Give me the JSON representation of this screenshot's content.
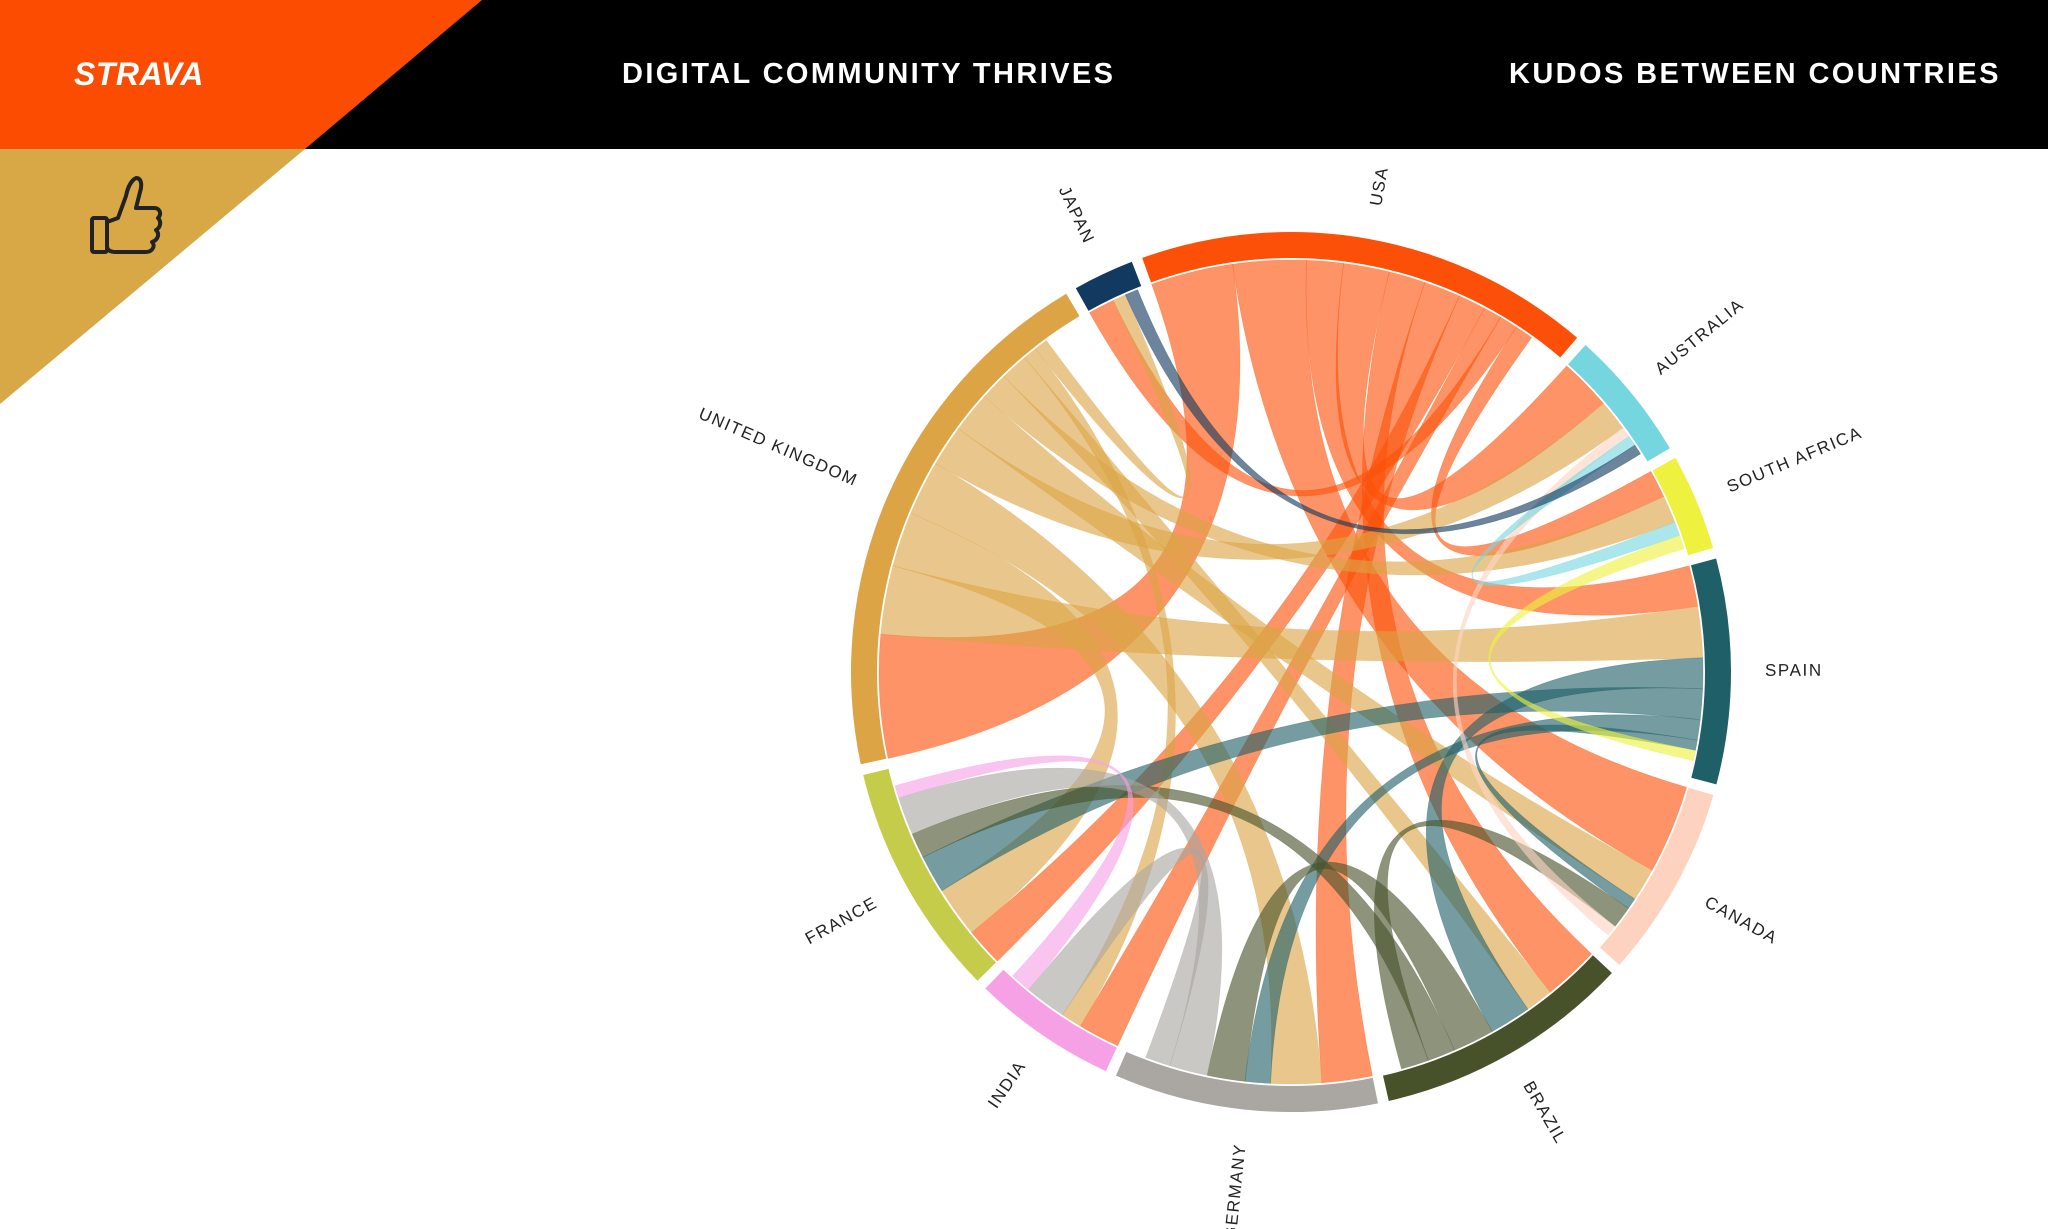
{
  "header": {
    "logo": "STRAVA",
    "title": "DIGITAL COMMUNITY THRIVES",
    "subtitle": "KUDOS BETWEEN COUNTRIES"
  },
  "icons": {
    "badge_icon": "thumbs-up-icon"
  },
  "colors": {
    "brand_orange": "#fc4c02",
    "badge_gold": "#d9a846",
    "header_black": "#000000"
  },
  "chart_data": {
    "type": "chord",
    "title": "",
    "groups": [
      {
        "name": "USA",
        "share": 0.142,
        "color": "#fc5008"
      },
      {
        "name": "AUSTRALIA",
        "share": 0.041,
        "color": "#76d6e0"
      },
      {
        "name": "SOUTH AFRICA",
        "share": 0.03,
        "color": "#eef23e"
      },
      {
        "name": "SPAIN",
        "share": 0.07,
        "color": "#1f5f68"
      },
      {
        "name": "CANADA",
        "share": 0.06,
        "color": "#fdd3c0"
      },
      {
        "name": "BRAZIL",
        "share": 0.08,
        "color": "#47522a"
      },
      {
        "name": "GERMANY",
        "share": 0.082,
        "color": "#aaa7a2"
      },
      {
        "name": "INDIA",
        "share": 0.045,
        "color": "#f6a1e6"
      },
      {
        "name": "FRANCE",
        "share": 0.073,
        "color": "#c5cc4a"
      },
      {
        "name": "UNITED KINGDOM",
        "share": 0.168,
        "color": "#dca445"
      },
      {
        "name": "JAPAN",
        "share": 0.019,
        "color": "#123a60"
      }
    ],
    "flows": [
      [
        "USA",
        "UNITED KINGDOM",
        9
      ],
      [
        "USA",
        "CANADA",
        8
      ],
      [
        "USA",
        "SPAIN",
        4
      ],
      [
        "USA",
        "AUSTRALIA",
        5
      ],
      [
        "USA",
        "BRAZIL",
        4
      ],
      [
        "USA",
        "GERMANY",
        4
      ],
      [
        "USA",
        "FRANCE",
        3
      ],
      [
        "USA",
        "INDIA",
        2
      ],
      [
        "USA",
        "JAPAN",
        2
      ],
      [
        "USA",
        "SOUTH AFRICA",
        2
      ],
      [
        "UNITED KINGDOM",
        "SPAIN",
        5
      ],
      [
        "UNITED KINGDOM",
        "FRANCE",
        4
      ],
      [
        "UNITED KINGDOM",
        "GERMANY",
        4
      ],
      [
        "UNITED KINGDOM",
        "AUSTRALIA",
        3
      ],
      [
        "UNITED KINGDOM",
        "CANADA",
        3
      ],
      [
        "UNITED KINGDOM",
        "SOUTH AFRICA",
        2
      ],
      [
        "UNITED KINGDOM",
        "BRAZIL",
        2
      ],
      [
        "UNITED KINGDOM",
        "INDIA",
        1
      ],
      [
        "UNITED KINGDOM",
        "JAPAN",
        1
      ],
      [
        "SPAIN",
        "BRAZIL",
        3
      ],
      [
        "SPAIN",
        "FRANCE",
        3
      ],
      [
        "SPAIN",
        "GERMANY",
        2
      ],
      [
        "SPAIN",
        "CANADA",
        1
      ],
      [
        "BRAZIL",
        "GERMANY",
        3
      ],
      [
        "BRAZIL",
        "FRANCE",
        2
      ],
      [
        "BRAZIL",
        "CANADA",
        2
      ],
      [
        "GERMANY",
        "FRANCE",
        3
      ],
      [
        "GERMANY",
        "INDIA",
        2
      ],
      [
        "CANADA",
        "AUSTRALIA",
        1
      ],
      [
        "INDIA",
        "FRANCE",
        1
      ],
      [
        "AUSTRALIA",
        "SOUTH AFRICA",
        1
      ],
      [
        "JAPAN",
        "AUSTRALIA",
        1
      ],
      [
        "SOUTH AFRICA",
        "SPAIN",
        1
      ]
    ]
  }
}
